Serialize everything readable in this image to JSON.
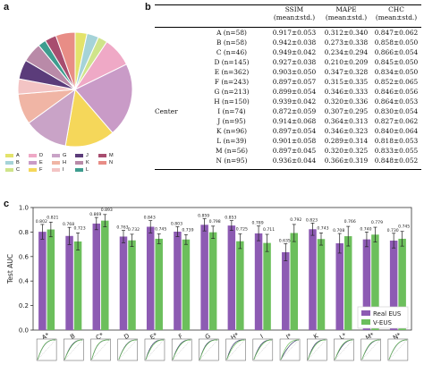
{
  "panels": {
    "a": "a",
    "b": "b",
    "c": "c"
  },
  "pie": {
    "slices": [
      {
        "label": "A",
        "count": 58,
        "color": "#e3e36b"
      },
      {
        "label": "B",
        "count": 58,
        "color": "#a5d3d8"
      },
      {
        "label": "C",
        "count": 46,
        "color": "#cfe48a"
      },
      {
        "label": "D",
        "count": 145,
        "color": "#efa9c6"
      },
      {
        "label": "E",
        "count": 362,
        "color": "#c99bc7"
      },
      {
        "label": "F",
        "count": 243,
        "color": "#f5d75a"
      },
      {
        "label": "G",
        "count": 213,
        "color": "#c9a3c7"
      },
      {
        "label": "H",
        "count": 150,
        "color": "#f0b5a5"
      },
      {
        "label": "I",
        "count": 74,
        "color": "#f3c4c4"
      },
      {
        "label": "J",
        "count": 95,
        "color": "#5b3c7a"
      },
      {
        "label": "K",
        "count": 96,
        "color": "#b98aa8"
      },
      {
        "label": "L",
        "count": 39,
        "color": "#3e9d8f"
      },
      {
        "label": "M",
        "count": 56,
        "color": "#a84d6f"
      },
      {
        "label": "N",
        "count": 95,
        "color": "#e88d86"
      }
    ]
  },
  "table": {
    "headers": [
      "",
      "",
      "SSIM\n(mean±std.)",
      "MAPE\n(mean±std.)",
      "CHC\n(mean±std.)"
    ],
    "group_label": "Center",
    "rows": [
      {
        "name": "A (n=58)",
        "ssim": "0.917±0.053",
        "mape": "0.312±0.340",
        "chc": "0.847±0.062"
      },
      {
        "name": "B (n=58)",
        "ssim": "0.942±0.038",
        "mape": "0.273±0.338",
        "chc": "0.858±0.050"
      },
      {
        "name": "C (n=46)",
        "ssim": "0.949±0.042",
        "mape": "0.234±0.294",
        "chc": "0.866±0.054"
      },
      {
        "name": "D (n=145)",
        "ssim": "0.927±0.038",
        "mape": "0.210±0.209",
        "chc": "0.845±0.050"
      },
      {
        "name": "E (n=362)",
        "ssim": "0.903±0.050",
        "mape": "0.347±0.328",
        "chc": "0.834±0.050"
      },
      {
        "name": "F (n=243)",
        "ssim": "0.897±0.057",
        "mape": "0.315±0.335",
        "chc": "0.852±0.065"
      },
      {
        "name": "G (n=213)",
        "ssim": "0.899±0.054",
        "mape": "0.346±0.333",
        "chc": "0.846±0.056"
      },
      {
        "name": "H (n=150)",
        "ssim": "0.939±0.042",
        "mape": "0.320±0.336",
        "chc": "0.864±0.053"
      },
      {
        "name": "I (n=74)",
        "ssim": "0.872±0.059",
        "mape": "0.307±0.295",
        "chc": "0.830±0.054"
      },
      {
        "name": "J (n=95)",
        "ssim": "0.914±0.068",
        "mape": "0.364±0.313",
        "chc": "0.827±0.062"
      },
      {
        "name": "K (n=96)",
        "ssim": "0.897±0.054",
        "mape": "0.346±0.323",
        "chc": "0.840±0.064"
      },
      {
        "name": "L (n=39)",
        "ssim": "0.901±0.058",
        "mape": "0.289±0.314",
        "chc": "0.818±0.053"
      },
      {
        "name": "M (n=56)",
        "ssim": "0.897±0.045",
        "mape": "0.320±0.325",
        "chc": "0.833±0.055"
      },
      {
        "name": "N (n=95)",
        "ssim": "0.936±0.044",
        "mape": "0.366±0.319",
        "chc": "0.848±0.052"
      }
    ]
  },
  "chart_data": [
    {
      "type": "pie",
      "categories": [
        "A",
        "B",
        "C",
        "D",
        "E",
        "F",
        "G",
        "H",
        "I",
        "J",
        "K",
        "L",
        "M",
        "N"
      ],
      "values": [
        58,
        58,
        46,
        145,
        362,
        243,
        213,
        150,
        74,
        95,
        96,
        39,
        56,
        95
      ],
      "legend": "below"
    },
    {
      "type": "table",
      "columns": [
        "SSIM (mean±std.)",
        "MAPE (mean±std.)",
        "CHC (mean±std.)"
      ],
      "rows": [
        "A (n=58)",
        "B (n=58)",
        "C (n=46)",
        "D (n=145)",
        "E (n=362)",
        "F (n=243)",
        "G (n=213)",
        "H (n=150)",
        "I (n=74)",
        "J (n=95)",
        "K (n=96)",
        "L (n=39)",
        "M (n=56)",
        "N (n=95)"
      ]
    },
    {
      "type": "bar",
      "categories": [
        "A*",
        "B",
        "C*",
        "D",
        "E*",
        "F",
        "G",
        "H*",
        "I",
        "J*",
        "K",
        "L*",
        "M*",
        "N*"
      ],
      "series": [
        {
          "name": "Real EUS",
          "color": "#8d5bb3",
          "values": [
            0.802,
            0.768,
            0.869,
            0.763,
            0.843,
            0.803,
            0.859,
            0.853,
            0.789,
            0.635,
            0.823,
            0.708,
            0.74,
            0.73
          ],
          "errors": [
            0.06,
            0.07,
            0.05,
            0.05,
            0.05,
            0.04,
            0.05,
            0.04,
            0.06,
            0.07,
            0.05,
            0.08,
            0.06,
            0.06
          ]
        },
        {
          "name": "V-EUS",
          "color": "#6cbf5c",
          "values": [
            0.821,
            0.723,
            0.893,
            0.732,
            0.745,
            0.739,
            0.798,
            0.725,
            0.711,
            0.792,
            0.743,
            0.766,
            0.779,
            0.745
          ],
          "errors": [
            0.06,
            0.07,
            0.05,
            0.05,
            0.04,
            0.04,
            0.05,
            0.06,
            0.07,
            0.07,
            0.05,
            0.08,
            0.06,
            0.06
          ]
        }
      ],
      "ylabel": "Test AUC",
      "ylim": [
        0.0,
        1.0
      ],
      "yticks": [
        "0.0",
        "0.2",
        "0.4",
        "0.6",
        "0.8",
        "1.0"
      ],
      "legend": "bottom-right",
      "grid": false
    }
  ],
  "roc_thumbnails": 14
}
